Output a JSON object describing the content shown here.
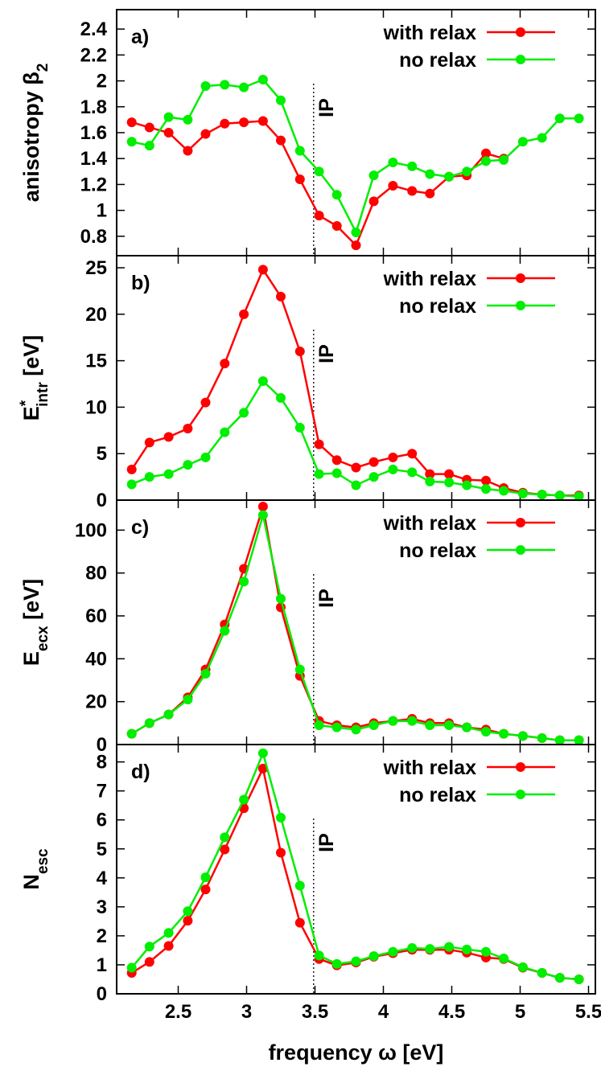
{
  "chart_data": [
    {
      "type": "line",
      "panel_label": "a)",
      "ylabel": "anisotropy β2",
      "ylabel_text": "anisotropy β",
      "ylabel_sub": "2",
      "ylim": [
        0.65,
        2.55
      ],
      "yticks": [
        0.8,
        1,
        1.2,
        1.4,
        1.6,
        1.8,
        2,
        2.2,
        2.4
      ],
      "ytick_labels": [
        "0.8",
        "1",
        "1.2",
        "1.4",
        "1.6",
        "1.8",
        "2",
        "2.2",
        "2.4"
      ],
      "ip_label": "IP",
      "series": [
        {
          "name": "with relax",
          "color": "#ff0000",
          "x": [
            2.16,
            2.29,
            2.43,
            2.57,
            2.7,
            2.84,
            2.98,
            3.12,
            3.25,
            3.39,
            3.53,
            3.66,
            3.8,
            3.93,
            4.07,
            4.21,
            4.34,
            4.48,
            4.61,
            4.75,
            4.88
          ],
          "values": [
            1.68,
            1.64,
            1.6,
            1.46,
            1.59,
            1.67,
            1.68,
            1.69,
            1.54,
            1.24,
            0.96,
            0.88,
            0.73,
            1.07,
            1.19,
            1.15,
            1.13,
            1.26,
            1.27,
            1.44,
            1.4
          ]
        },
        {
          "name": "no relax",
          "color": "#00ee00",
          "x": [
            2.16,
            2.29,
            2.43,
            2.57,
            2.7,
            2.84,
            2.98,
            3.12,
            3.25,
            3.39,
            3.53,
            3.66,
            3.8,
            3.93,
            4.07,
            4.21,
            4.34,
            4.48,
            4.61,
            4.75,
            4.88,
            5.02,
            5.16,
            5.29,
            5.43
          ],
          "values": [
            1.53,
            1.5,
            1.72,
            1.7,
            1.96,
            1.97,
            1.95,
            2.01,
            1.85,
            1.46,
            1.3,
            1.12,
            0.83,
            1.27,
            1.37,
            1.34,
            1.28,
            1.26,
            1.3,
            1.38,
            1.39,
            1.53,
            1.56,
            1.71,
            1.71
          ]
        }
      ]
    },
    {
      "type": "line",
      "panel_label": "b)",
      "ylabel": "E*intr [eV]",
      "ylabel_text": "E",
      "ylabel_sup": "*",
      "ylabel_sub": "intr",
      "ylabel_unit": " [eV]",
      "ylim": [
        0,
        26.3
      ],
      "yticks": [
        0,
        5,
        10,
        15,
        20,
        25
      ],
      "ytick_labels": [
        "0",
        "5",
        "10",
        "15",
        "20",
        "25"
      ],
      "ip_label": "IP",
      "series": [
        {
          "name": "with relax",
          "color": "#ff0000",
          "x": [
            2.16,
            2.29,
            2.43,
            2.57,
            2.7,
            2.84,
            2.98,
            3.12,
            3.25,
            3.39,
            3.53,
            3.66,
            3.8,
            3.93,
            4.07,
            4.21,
            4.34,
            4.48,
            4.61,
            4.75,
            4.88,
            5.02,
            5.16,
            5.29,
            5.43
          ],
          "values": [
            3.3,
            6.2,
            6.8,
            7.7,
            10.5,
            14.7,
            20.0,
            24.8,
            21.9,
            16.0,
            6.0,
            4.3,
            3.5,
            4.1,
            4.6,
            5.0,
            2.8,
            2.8,
            2.2,
            2.1,
            1.3,
            0.8,
            0.6,
            0.5,
            0.5
          ]
        },
        {
          "name": "no relax",
          "color": "#00ee00",
          "x": [
            2.16,
            2.29,
            2.43,
            2.57,
            2.7,
            2.84,
            2.98,
            3.12,
            3.25,
            3.39,
            3.53,
            3.66,
            3.8,
            3.93,
            4.07,
            4.21,
            4.34,
            4.48,
            4.61,
            4.75,
            4.88,
            5.02,
            5.16,
            5.29,
            5.43
          ],
          "values": [
            1.7,
            2.5,
            2.8,
            3.8,
            4.6,
            7.3,
            9.4,
            12.8,
            11.0,
            7.8,
            2.8,
            2.9,
            1.6,
            2.5,
            3.3,
            3.0,
            2.0,
            1.9,
            1.6,
            1.2,
            1.0,
            0.7,
            0.6,
            0.5,
            0.4
          ]
        }
      ]
    },
    {
      "type": "line",
      "panel_label": "c)",
      "ylabel": "Eecx [eV]",
      "ylabel_text": "E",
      "ylabel_sub": "ecx",
      "ylabel_unit": " [eV]",
      "ylim": [
        0,
        114
      ],
      "yticks": [
        0,
        20,
        40,
        60,
        80,
        100
      ],
      "ytick_labels": [
        "0",
        "20",
        "40",
        "60",
        "80",
        "100"
      ],
      "ip_label": "IP",
      "series": [
        {
          "name": "with relax",
          "color": "#ff0000",
          "x": [
            2.16,
            2.29,
            2.43,
            2.57,
            2.7,
            2.84,
            2.98,
            3.12,
            3.25,
            3.39,
            3.53,
            3.66,
            3.8,
            3.93,
            4.07,
            4.21,
            4.34,
            4.48,
            4.61,
            4.75,
            4.88,
            5.02,
            5.16,
            5.29,
            5.43
          ],
          "values": [
            5,
            10,
            14,
            22,
            35,
            56,
            82,
            111,
            64,
            32,
            11,
            9,
            8,
            10,
            11,
            12,
            10,
            10,
            8,
            7,
            5,
            4,
            3,
            2,
            2
          ]
        },
        {
          "name": "no relax",
          "color": "#00ee00",
          "x": [
            2.16,
            2.29,
            2.43,
            2.57,
            2.7,
            2.84,
            2.98,
            3.12,
            3.25,
            3.39,
            3.53,
            3.66,
            3.8,
            3.93,
            4.07,
            4.21,
            4.34,
            4.48,
            4.61,
            4.75,
            4.88,
            5.02,
            5.16,
            5.29,
            5.43
          ],
          "values": [
            5,
            10,
            14,
            21,
            33,
            53,
            76,
            107,
            68,
            35,
            9,
            8,
            7,
            9,
            11,
            11,
            9,
            9,
            8,
            6,
            5,
            4,
            3,
            2,
            2
          ]
        }
      ]
    },
    {
      "type": "line",
      "panel_label": "d)",
      "ylabel": "Nesc",
      "ylabel_text": "N",
      "ylabel_sub": "esc",
      "ylim": [
        0,
        8.6
      ],
      "yticks": [
        0,
        1,
        2,
        3,
        4,
        5,
        6,
        7,
        8
      ],
      "ytick_labels": [
        "0",
        "1",
        "2",
        "3",
        "4",
        "5",
        "6",
        "7",
        "8"
      ],
      "ip_label": "IP",
      "xlabel": "frequency ω [eV]",
      "xticks": [
        2.5,
        3,
        3.5,
        4,
        4.5,
        5,
        5.5
      ],
      "xtick_labels": [
        "2.5",
        "3",
        "3.5",
        "4",
        "4.5",
        "5",
        "5.5"
      ],
      "series": [
        {
          "name": "with relax",
          "color": "#ff0000",
          "x": [
            2.16,
            2.29,
            2.43,
            2.57,
            2.7,
            2.84,
            2.98,
            3.12,
            3.25,
            3.39,
            3.53,
            3.66,
            3.8,
            3.93,
            4.07,
            4.21,
            4.34,
            4.48,
            4.61,
            4.75,
            4.88,
            5.02,
            5.16,
            5.29,
            5.43
          ],
          "values": [
            0.72,
            1.1,
            1.65,
            2.52,
            3.6,
            4.98,
            6.4,
            7.77,
            4.87,
            2.45,
            1.2,
            0.98,
            1.08,
            1.28,
            1.4,
            1.52,
            1.52,
            1.52,
            1.42,
            1.25,
            1.2,
            0.9,
            0.72,
            0.55,
            0.5
          ]
        },
        {
          "name": "no relax",
          "color": "#00ee00",
          "x": [
            2.16,
            2.29,
            2.43,
            2.57,
            2.7,
            2.84,
            2.98,
            3.12,
            3.25,
            3.39,
            3.53,
            3.66,
            3.8,
            3.93,
            4.07,
            4.21,
            4.34,
            4.48,
            4.61,
            4.75,
            4.88,
            5.02,
            5.16,
            5.29,
            5.43
          ],
          "values": [
            0.9,
            1.63,
            2.1,
            2.85,
            4.02,
            5.4,
            6.7,
            8.3,
            6.08,
            3.73,
            1.32,
            1.03,
            1.12,
            1.3,
            1.45,
            1.58,
            1.55,
            1.62,
            1.53,
            1.45,
            1.22,
            0.92,
            0.72,
            0.55,
            0.5
          ]
        }
      ]
    }
  ],
  "xlim": [
    2.05,
    5.55
  ],
  "ip_x": 3.49,
  "legend": {
    "placement": "top-right",
    "entries": [
      "with relax",
      "no relax"
    ]
  }
}
